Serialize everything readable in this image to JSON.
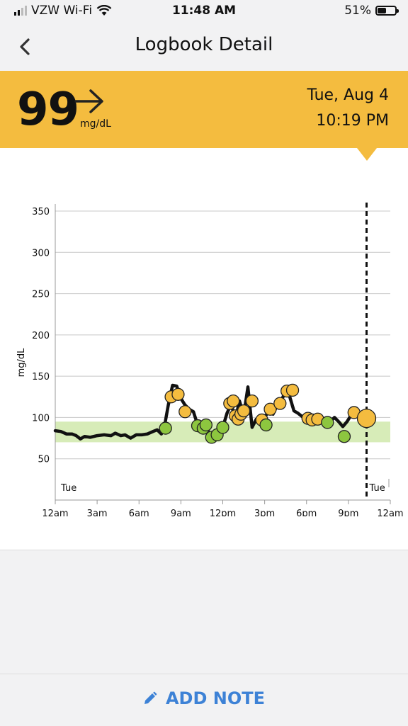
{
  "status_bar": {
    "carrier": "VZW Wi-Fi",
    "time": "11:48 AM",
    "battery": "51%",
    "battery_level": 0.51
  },
  "header": {
    "title": "Logbook Detail"
  },
  "reading": {
    "value": "99",
    "unit": "mg/dL",
    "trend": "steady-arrow-icon",
    "date": "Tue, Aug 4",
    "time": "10:19 PM"
  },
  "colors": {
    "banner": "#f4bc3f",
    "target_band": "#d7ecb8",
    "in_range_dot": "#8dc63f",
    "high_dot": "#f4bc3f",
    "link": "#3d82d6"
  },
  "chart_data": {
    "type": "line",
    "ylabel": "mg/dL",
    "yticks": [
      50,
      100,
      150,
      200,
      250,
      300,
      350
    ],
    "ylim": [
      0,
      350
    ],
    "xticks": [
      "12am",
      "3am",
      "6am",
      "9am",
      "12pm",
      "3pm",
      "6pm",
      "9pm",
      "12am"
    ],
    "day_labels": [
      "Tue",
      "Tue"
    ],
    "target_range": [
      70,
      95
    ],
    "current_marker_hour": 22.3,
    "series": [
      {
        "line": [
          [
            0,
            84
          ],
          [
            0.4,
            83
          ],
          [
            0.8,
            80
          ],
          [
            1.2,
            80
          ],
          [
            1.5,
            78
          ],
          [
            1.8,
            74
          ],
          [
            2.1,
            77
          ],
          [
            2.5,
            76
          ],
          [
            3,
            78
          ],
          [
            3.5,
            79
          ],
          [
            4,
            78
          ],
          [
            4.3,
            81
          ],
          [
            4.7,
            78
          ],
          [
            5,
            79
          ],
          [
            5.4,
            75
          ],
          [
            5.8,
            79
          ],
          [
            6.2,
            79
          ],
          [
            6.6,
            80
          ],
          [
            7,
            83
          ],
          [
            7.3,
            85
          ],
          [
            7.6,
            80
          ],
          [
            7.8,
            87
          ],
          [
            8.1,
            115
          ],
          [
            8.4,
            139
          ],
          [
            8.7,
            138
          ],
          [
            9,
            123
          ],
          [
            9.3,
            115
          ],
          [
            9.6,
            110
          ],
          [
            9.9,
            107
          ],
          [
            10.2,
            91
          ],
          [
            10.5,
            87
          ],
          [
            10.8,
            92
          ],
          [
            11.1,
            76
          ],
          [
            11.4,
            79
          ],
          [
            11.7,
            85
          ],
          [
            12,
            88
          ],
          [
            12.3,
            105
          ],
          [
            12.6,
            116
          ],
          [
            12.9,
            98
          ],
          [
            13.2,
            120
          ],
          [
            13.5,
            103
          ],
          [
            13.8,
            137
          ],
          [
            14.1,
            88
          ],
          [
            14.4,
            98
          ],
          [
            14.7,
            91
          ],
          [
            15,
            100
          ],
          [
            15.3,
            108
          ],
          [
            15.6,
            104
          ],
          [
            15.9,
            115
          ],
          [
            16.2,
            120
          ],
          [
            16.5,
            133
          ],
          [
            16.8,
            125
          ],
          [
            17.1,
            108
          ],
          [
            17.4,
            105
          ],
          [
            17.7,
            101
          ],
          [
            18,
            98
          ],
          [
            18.3,
            97
          ],
          [
            18.6,
            98
          ],
          [
            19,
            95
          ],
          [
            19.4,
            92
          ],
          [
            19.7,
            95
          ],
          [
            20,
            100
          ],
          [
            20.3,
            95
          ],
          [
            20.6,
            89
          ],
          [
            20.9,
            95
          ],
          [
            21.2,
            103
          ],
          [
            21.6,
            102
          ],
          [
            22,
            96
          ],
          [
            22.3,
            99
          ]
        ]
      }
    ],
    "points": [
      {
        "x": 7.9,
        "y": 87,
        "status": "in-range"
      },
      {
        "x": 8.3,
        "y": 125,
        "status": "high"
      },
      {
        "x": 8.8,
        "y": 128,
        "status": "high"
      },
      {
        "x": 9.3,
        "y": 107,
        "status": "high"
      },
      {
        "x": 10.2,
        "y": 90,
        "status": "in-range"
      },
      {
        "x": 10.6,
        "y": 87,
        "status": "in-range"
      },
      {
        "x": 10.8,
        "y": 91,
        "status": "in-range"
      },
      {
        "x": 11.2,
        "y": 76,
        "status": "in-range"
      },
      {
        "x": 11.6,
        "y": 79,
        "status": "in-range"
      },
      {
        "x": 12,
        "y": 88,
        "status": "in-range"
      },
      {
        "x": 12.5,
        "y": 117,
        "status": "high"
      },
      {
        "x": 12.75,
        "y": 120,
        "status": "high"
      },
      {
        "x": 12.9,
        "y": 102,
        "status": "high"
      },
      {
        "x": 13.1,
        "y": 98,
        "status": "high"
      },
      {
        "x": 13.3,
        "y": 104,
        "status": "high"
      },
      {
        "x": 13.5,
        "y": 108,
        "status": "high"
      },
      {
        "x": 14.1,
        "y": 120,
        "status": "high"
      },
      {
        "x": 14.8,
        "y": 97,
        "status": "high"
      },
      {
        "x": 15.1,
        "y": 91,
        "status": "in-range"
      },
      {
        "x": 15.4,
        "y": 110,
        "status": "high"
      },
      {
        "x": 16.1,
        "y": 117,
        "status": "high"
      },
      {
        "x": 16.6,
        "y": 132,
        "status": "high"
      },
      {
        "x": 17,
        "y": 133,
        "status": "high"
      },
      {
        "x": 18.1,
        "y": 99,
        "status": "high"
      },
      {
        "x": 18.4,
        "y": 97,
        "status": "high"
      },
      {
        "x": 18.8,
        "y": 98,
        "status": "high"
      },
      {
        "x": 19.5,
        "y": 94,
        "status": "in-range"
      },
      {
        "x": 20.7,
        "y": 77,
        "status": "in-range"
      },
      {
        "x": 21.4,
        "y": 106,
        "status": "high"
      },
      {
        "x": 22.3,
        "y": 99,
        "status": "current"
      }
    ]
  },
  "footer": {
    "action_label": "ADD NOTE",
    "action_icon": "pencil-icon"
  }
}
